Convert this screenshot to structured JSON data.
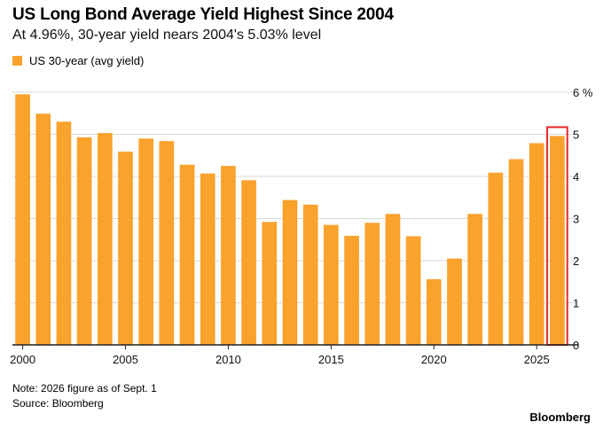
{
  "colors": {
    "bar": "#f9a22c",
    "highlight": "#e8282b",
    "grid": "#d9d9d9",
    "axis": "#222222"
  },
  "legend": {
    "label": "US 30-year (avg yield)"
  },
  "footer": {
    "note": "Note: 2026 figure as of Sept. 1",
    "source": "Source: Bloomberg",
    "brand": "Bloomberg"
  },
  "chart_data": {
    "type": "bar",
    "title": "US Long Bond Average Yield Highest Since 2004",
    "subtitle": "At 4.96%, 30-year yield nears 2004's 5.03% level",
    "categories": [
      2000,
      2001,
      2002,
      2003,
      2004,
      2005,
      2006,
      2007,
      2008,
      2009,
      2010,
      2011,
      2012,
      2013,
      2014,
      2015,
      2016,
      2017,
      2018,
      2019,
      2020,
      2021,
      2022,
      2023,
      2024,
      2025,
      2026
    ],
    "series": [
      {
        "name": "US 30-year (avg yield)",
        "values": [
          5.95,
          5.49,
          5.3,
          4.93,
          5.03,
          4.59,
          4.9,
          4.84,
          4.28,
          4.07,
          4.25,
          3.91,
          2.92,
          3.44,
          3.33,
          2.85,
          2.59,
          2.9,
          3.11,
          2.58,
          1.56,
          2.05,
          3.11,
          4.09,
          4.41,
          4.79,
          4.96
        ]
      }
    ],
    "highlight": 2026,
    "ylim": [
      0,
      6
    ],
    "yticks": [
      0,
      1,
      2,
      3,
      4,
      5,
      6
    ],
    "ytick_labels": [
      "0",
      "1",
      "2",
      "3",
      "4",
      "5",
      "6 %"
    ],
    "xticks": [
      2000,
      2005,
      2010,
      2015,
      2020,
      2025
    ],
    "xlabel": "",
    "ylabel": "",
    "grid": true,
    "y_axis_side": "right",
    "legend_position": "top-left"
  }
}
